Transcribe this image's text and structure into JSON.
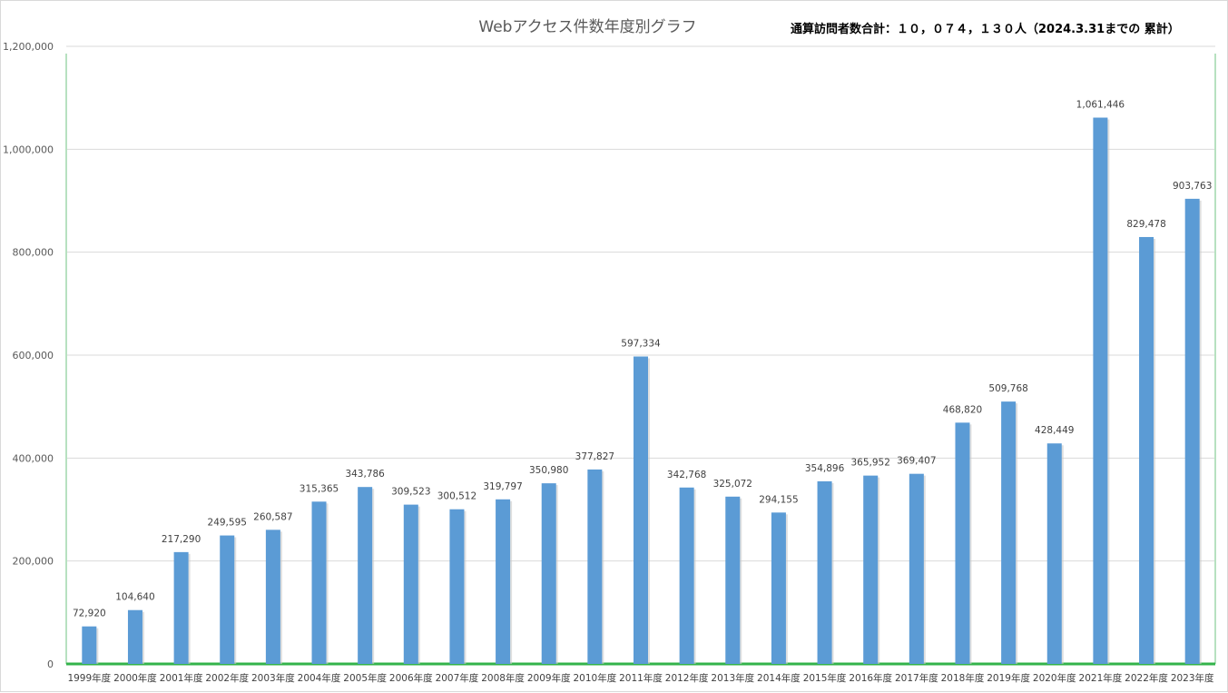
{
  "chart_data": {
    "type": "bar",
    "title": "Webアクセス件数年度別グラフ",
    "note": "通算訪問者数合計：１０，０７４，１３０人（2024.3.31までの 累計）",
    "xlabel": "",
    "ylabel": "",
    "ylim": [
      0,
      1200000
    ],
    "yticks": [
      "0",
      "200,000",
      "400,000",
      "600,000",
      "800,000",
      "1,000,000",
      "1,200,000"
    ],
    "grid": true,
    "legend": "none",
    "bar_color": "#5b9bd5",
    "categories": [
      "1999年度",
      "2000年度",
      "2001年度",
      "2002年度",
      "2003年度",
      "2004年度",
      "2005年度",
      "2006年度",
      "2007年度",
      "2008年度",
      "2009年度",
      "2010年度",
      "2011年度",
      "2012年度",
      "2013年度",
      "2014年度",
      "2015年度",
      "2016年度",
      "2017年度",
      "2018年度",
      "2019年度",
      "2020年度",
      "2021年度",
      "2022年度",
      "2023年度"
    ],
    "values": [
      72920,
      104640,
      217290,
      249595,
      260587,
      315365,
      343786,
      309523,
      300512,
      319797,
      350980,
      377827,
      597334,
      342768,
      325072,
      294155,
      354896,
      365952,
      369407,
      468820,
      509768,
      428449,
      1061446,
      829478,
      903763
    ],
    "value_labels": [
      "72,920",
      "104,640",
      "217,290",
      "249,595",
      "260,587",
      "315,365",
      "343,786",
      "309,523",
      "300,512",
      "319,797",
      "350,980",
      "377,827",
      "597,334",
      "342,768",
      "325,072",
      "294,155",
      "354,896",
      "365,952",
      "369,407",
      "468,820",
      "509,768",
      "428,449",
      "1,061,446",
      "829,478",
      "903,763"
    ]
  }
}
